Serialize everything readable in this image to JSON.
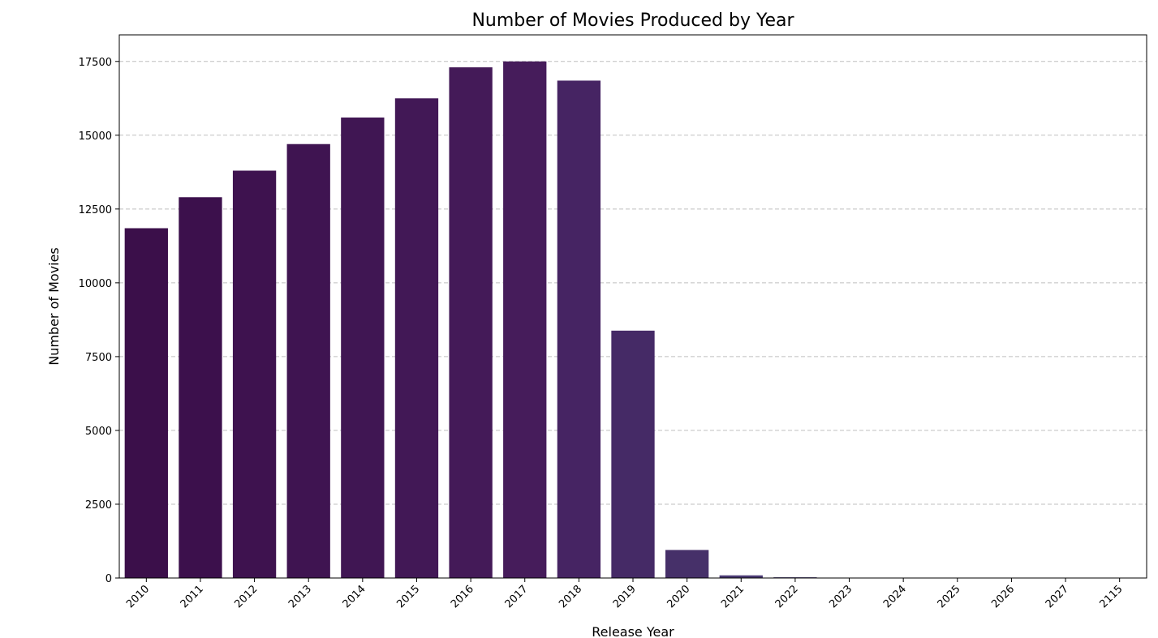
{
  "chart_data": {
    "type": "bar",
    "title": "Number of Movies Produced by Year",
    "xlabel": "Release Year",
    "ylabel": "Number of Movies",
    "categories": [
      "2010",
      "2011",
      "2012",
      "2013",
      "2014",
      "2015",
      "2016",
      "2017",
      "2018",
      "2019",
      "2020",
      "2021",
      "2022",
      "2023",
      "2024",
      "2025",
      "2026",
      "2027",
      "2115"
    ],
    "values": [
      11850,
      12900,
      13800,
      14700,
      15600,
      16250,
      17300,
      17500,
      16850,
      8380,
      950,
      90,
      25,
      5,
      3,
      2,
      1,
      1,
      1
    ],
    "ylim": [
      0,
      18400
    ],
    "yticks": [
      0,
      2500,
      5000,
      7500,
      10000,
      12500,
      15000,
      17500
    ],
    "grid": "y-dashed",
    "colors": [
      "#3b0f4a",
      "#3c104c",
      "#3e124f",
      "#3f1451",
      "#401653",
      "#421856",
      "#441a58",
      "#461c5b",
      "#462463",
      "#452a66",
      "#463069",
      "#4a3a73",
      "#4b3f77",
      "#4c447b",
      "#4d4980",
      "#4e4e84",
      "#4f5388",
      "#50588c",
      "#515d90"
    ]
  }
}
